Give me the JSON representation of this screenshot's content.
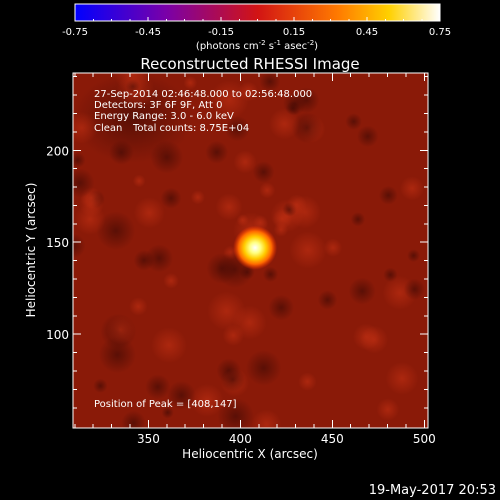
{
  "chart_data": {
    "type": "heatmap",
    "title": "Reconstructed RHESSI Image",
    "xlabel": "Heliocentric X (arcsec)",
    "ylabel": "Heliocentric Y (arcsec)",
    "xlim": [
      309,
      502
    ],
    "ylim": [
      49,
      242
    ],
    "x_ticks": [
      350,
      400,
      450,
      500
    ],
    "y_ticks": [
      100,
      150,
      200
    ],
    "colorbar": {
      "colormap": "IDL red temperature",
      "range": [
        -0.75,
        0.75
      ],
      "ticks": [
        "-0.75",
        "-0.45",
        "-0.15",
        "0.15",
        "0.45",
        "0.75"
      ],
      "unit_parts": [
        "(photons cm",
        "-2",
        " s",
        "-1",
        " asec",
        "-2",
        ")"
      ],
      "colors": [
        "#0000ff",
        "#7a00a8",
        "#d21414",
        "#ff7a00",
        "#ffd000",
        "#ffffff"
      ]
    },
    "annotations": {
      "time_range": "27-Sep-2014 02:46:48.000 to 02:56:48.000",
      "detectors": "Detectors: 3F 6F 9F, Att 0",
      "energy": "Energy Range: 3.0 - 6.0 keV",
      "method": "Clean",
      "counts": "Total counts: 8.75E+04",
      "peak": "Position of Peak = [408,147]"
    },
    "peak": {
      "x": 408,
      "y": 147
    },
    "background_color": "#8a1a08"
  },
  "footer": {
    "timestamp": "19-May-2017 20:53"
  }
}
